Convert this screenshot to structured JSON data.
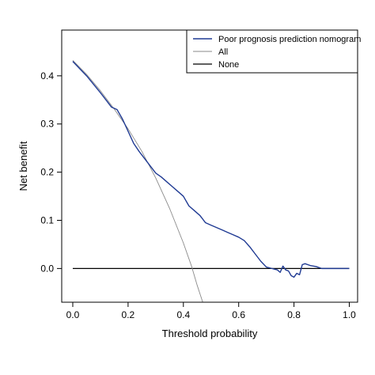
{
  "chart_data": {
    "type": "line",
    "title": "",
    "xlabel": "Threshold probability",
    "ylabel": "Net benefit",
    "xlim": [
      -0.04,
      1.03
    ],
    "ylim": [
      -0.07,
      0.495
    ],
    "xticks": [
      0.0,
      0.2,
      0.4,
      0.6,
      0.8,
      1.0
    ],
    "xtick_labels": [
      "0.0",
      "0.2",
      "0.4",
      "0.6",
      "0.8",
      "1.0"
    ],
    "yticks": [
      0.0,
      0.1,
      0.2,
      0.3,
      0.4
    ],
    "ytick_labels": [
      "0.0",
      "0.1",
      "0.2",
      "0.3",
      "0.4"
    ],
    "grid": false,
    "legend_position": "top-right",
    "series": [
      {
        "name": "Poor prognosis prediction nomogram",
        "color": "#1f3a93",
        "style": "solid",
        "x": [
          0.0,
          0.05,
          0.1,
          0.14,
          0.16,
          0.18,
          0.2,
          0.22,
          0.24,
          0.26,
          0.28,
          0.3,
          0.32,
          0.34,
          0.36,
          0.38,
          0.4,
          0.42,
          0.44,
          0.46,
          0.48,
          0.5,
          0.52,
          0.54,
          0.56,
          0.58,
          0.6,
          0.62,
          0.64,
          0.66,
          0.68,
          0.7,
          0.72,
          0.74,
          0.75,
          0.76,
          0.77,
          0.78,
          0.79,
          0.8,
          0.81,
          0.82,
          0.83,
          0.84,
          0.86,
          0.88,
          0.9,
          1.0
        ],
        "y": [
          0.43,
          0.4,
          0.365,
          0.335,
          0.33,
          0.31,
          0.285,
          0.26,
          0.243,
          0.228,
          0.213,
          0.198,
          0.19,
          0.18,
          0.17,
          0.16,
          0.15,
          0.13,
          0.12,
          0.11,
          0.095,
          0.09,
          0.085,
          0.08,
          0.075,
          0.07,
          0.065,
          0.058,
          0.045,
          0.03,
          0.015,
          0.003,
          0.0,
          -0.003,
          -0.008,
          0.005,
          -0.003,
          -0.005,
          -0.015,
          -0.018,
          -0.01,
          -0.013,
          0.008,
          0.01,
          0.006,
          0.004,
          0.0,
          0.0
        ]
      },
      {
        "name": "All",
        "color": "#8a8a8a",
        "style": "solid",
        "x": [
          0.0,
          0.05,
          0.1,
          0.15,
          0.2,
          0.25,
          0.3,
          0.35,
          0.4,
          0.43,
          0.45,
          0.47
        ],
        "y": [
          0.432,
          0.403,
          0.369,
          0.331,
          0.29,
          0.243,
          0.188,
          0.125,
          0.053,
          0.004,
          -0.035,
          -0.07
        ]
      },
      {
        "name": "None",
        "color": "#000000",
        "style": "solid",
        "x": [
          0.0,
          1.0
        ],
        "y": [
          0.0,
          0.0
        ]
      }
    ]
  }
}
